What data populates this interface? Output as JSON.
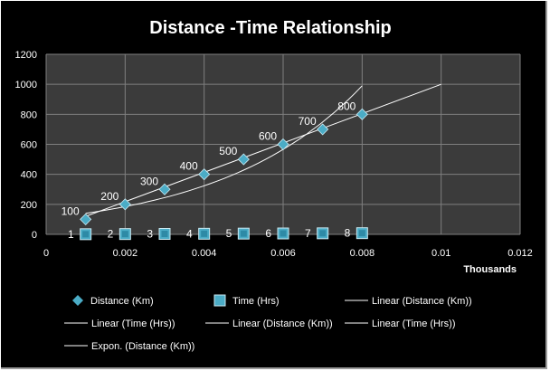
{
  "chart_data": {
    "type": "scatter",
    "title": "Distance -Time Relationship",
    "xlabel": "Thousands",
    "ylabel": "",
    "xlim": [
      0,
      0.012
    ],
    "ylim": [
      0,
      1200
    ],
    "x_ticks": [
      "0",
      "0.002",
      "0.004",
      "0.006",
      "0.008",
      "0.01",
      "0.012"
    ],
    "y_ticks": [
      "0",
      "200",
      "400",
      "600",
      "800",
      "1000",
      "1200"
    ],
    "grid": true,
    "legend_position": "bottom",
    "series": [
      {
        "name": "Distance (Km)",
        "marker": "diamond",
        "color": "#4bacc6",
        "x": [
          0.001,
          0.002,
          0.003,
          0.004,
          0.005,
          0.006,
          0.007,
          0.008
        ],
        "y": [
          100,
          200,
          300,
          400,
          500,
          600,
          700,
          800
        ],
        "data_labels": [
          "100",
          "200",
          "300",
          "400",
          "500",
          "600",
          "700",
          "800"
        ]
      },
      {
        "name": "Time (Hrs)",
        "marker": "square",
        "color": "#4bacc6",
        "x": [
          0.001,
          0.002,
          0.003,
          0.004,
          0.005,
          0.006,
          0.007,
          0.008
        ],
        "y": [
          1,
          2,
          3,
          4,
          5,
          6,
          7,
          8
        ],
        "data_labels": [
          "1",
          "2",
          "3",
          "4",
          "5",
          "6",
          "7",
          "8"
        ]
      }
    ],
    "trendlines": [
      {
        "name": "Linear (Distance (Km))",
        "type": "linear",
        "x": [
          0.001,
          0.01
        ],
        "y": [
          120,
          1000
        ]
      },
      {
        "name": "Expon. (Distance (Km))",
        "type": "exponential",
        "x": [
          0.001,
          0.008
        ],
        "y": [
          140,
          990
        ]
      }
    ],
    "legend": [
      "Distance (Km)",
      "Time (Hrs)",
      "Linear (Distance (Km))",
      "Linear (Time (Hrs))",
      "Linear (Distance (Km))",
      "Linear (Time (Hrs))",
      "Expon. (Distance (Km))"
    ],
    "colors": {
      "background": "#000000",
      "plot_area": "#3b3b3b",
      "grid": "#7f7f7f",
      "marker": "#4bacc6",
      "trend": "#ffffff"
    }
  }
}
